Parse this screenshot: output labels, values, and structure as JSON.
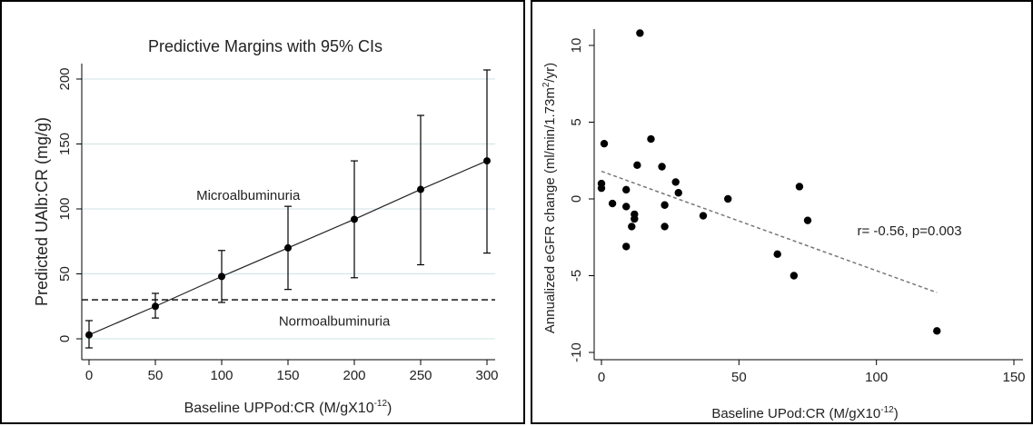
{
  "chart_data": [
    {
      "type": "line",
      "title": "Predictive Margins with 95% CIs",
      "xlabel": "Baseline UPPod:CR (M/gX10",
      "xlabel_sup": "-12",
      "xlabel_tail": ")",
      "ylabel": "Predicted UAlb:CR (mg/g)",
      "xlim": [
        0,
        300
      ],
      "ylim": [
        0,
        200
      ],
      "xticks": [
        "0",
        "50",
        "100",
        "150",
        "200",
        "250",
        "300"
      ],
      "yticks": [
        "0",
        "50",
        "100",
        "150",
        "200"
      ],
      "grid": true,
      "series": [
        {
          "x": [
            0,
            50,
            100,
            150,
            200,
            250,
            300
          ],
          "y": [
            3,
            25,
            48,
            70,
            92,
            115,
            137
          ],
          "ci_low": [
            -7,
            16,
            28,
            38,
            47,
            57,
            66
          ],
          "ci_high": [
            14,
            35,
            68,
            102,
            137,
            172,
            207
          ]
        }
      ],
      "reference_line": {
        "y": 30,
        "style": "dashed"
      },
      "annotations": [
        {
          "text": "Microalbuminuria",
          "x": 120,
          "y": 107
        },
        {
          "text": "Normoalbuminuria",
          "x": 185,
          "y": 10
        }
      ]
    },
    {
      "type": "scatter",
      "xlabel": "Baseline UPod:CR (M/gX10",
      "xlabel_sup": "-12",
      "xlabel_tail": ")",
      "ylabel": "Annualized eGFR change (ml/min/1.73m",
      "ylabel_sup": "2",
      "ylabel_tail": "/yr)",
      "xlim": [
        0,
        150
      ],
      "ylim": [
        -10,
        12
      ],
      "xticks": [
        "0",
        "50",
        "100",
        "150"
      ],
      "yticks": [
        "-10",
        "-5",
        "0",
        "5",
        "10"
      ],
      "grid": false,
      "points": [
        {
          "x": 0,
          "y": 1.0
        },
        {
          "x": 0,
          "y": 0.7
        },
        {
          "x": 1,
          "y": 3.6
        },
        {
          "x": 4,
          "y": -0.3
        },
        {
          "x": 9,
          "y": -3.1
        },
        {
          "x": 9,
          "y": 0.6
        },
        {
          "x": 9,
          "y": -0.5
        },
        {
          "x": 11,
          "y": -1.8
        },
        {
          "x": 12,
          "y": -1.0
        },
        {
          "x": 12,
          "y": -1.3
        },
        {
          "x": 13,
          "y": 2.2
        },
        {
          "x": 14,
          "y": 10.8
        },
        {
          "x": 18,
          "y": 3.9
        },
        {
          "x": 22,
          "y": 2.1
        },
        {
          "x": 23,
          "y": -1.8
        },
        {
          "x": 23,
          "y": -0.4
        },
        {
          "x": 27,
          "y": 1.1
        },
        {
          "x": 28,
          "y": 0.4
        },
        {
          "x": 37,
          "y": -1.1
        },
        {
          "x": 46,
          "y": 0.0
        },
        {
          "x": 64,
          "y": -3.6
        },
        {
          "x": 70,
          "y": -5.0
        },
        {
          "x": 72,
          "y": 0.8
        },
        {
          "x": 75,
          "y": -1.4
        },
        {
          "x": 122,
          "y": -8.6
        }
      ],
      "trend_line": {
        "x": [
          0,
          122
        ],
        "y": [
          1.8,
          -6.1
        ],
        "style": "dotted"
      },
      "annotations": [
        {
          "text": "r= -0.56, p=0.003",
          "x": 93,
          "y": -2.0
        }
      ]
    }
  ]
}
